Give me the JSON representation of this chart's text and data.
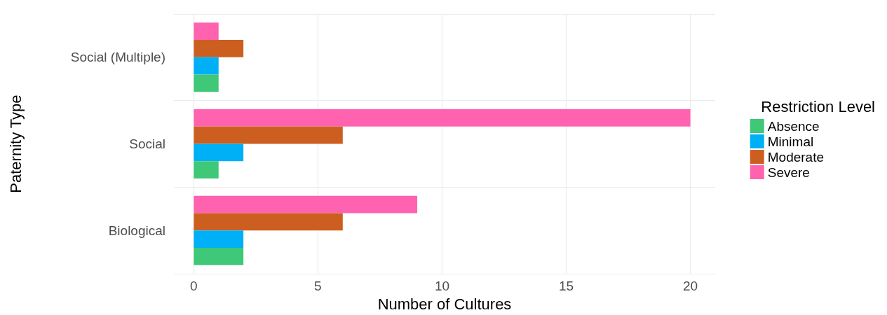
{
  "chart_data": {
    "type": "bar",
    "orientation": "horizontal",
    "xlabel": "Number of Cultures",
    "ylabel": "Paternity Type",
    "legend_title": "Restriction Level",
    "legend": "right",
    "grid": true,
    "categories": [
      "Social (Multiple)",
      "Social",
      "Biological"
    ],
    "xlim": [
      -0.8,
      21
    ],
    "xticks": [
      0,
      5,
      10,
      15,
      20
    ],
    "series": [
      {
        "name": "Absence",
        "color": "#3ec878",
        "values": [
          1,
          1,
          2
        ]
      },
      {
        "name": "Minimal",
        "color": "#00b0f6",
        "values": [
          1,
          2,
          2
        ]
      },
      {
        "name": "Moderate",
        "color": "#cc5f1f",
        "values": [
          2,
          6,
          6
        ]
      },
      {
        "name": "Severe",
        "color": "#ff63b0",
        "values": [
          1,
          20,
          9
        ]
      }
    ]
  }
}
